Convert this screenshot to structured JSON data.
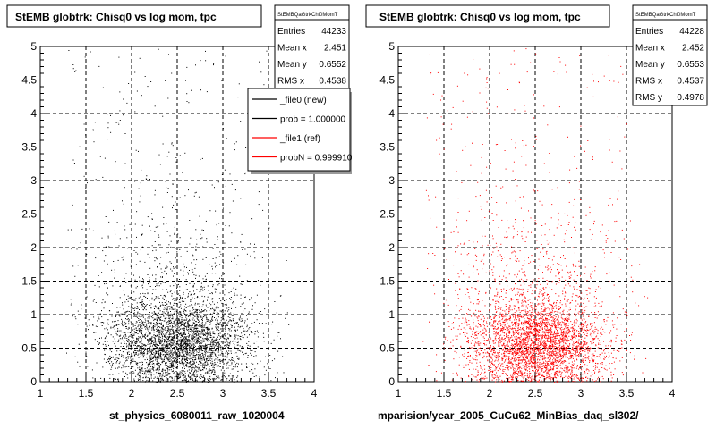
{
  "chart_data": [
    {
      "type": "scatter",
      "title": "StEMB globtrk: Chisq0 vs log mom, tpc",
      "xlabel": "st_physics_6080011_raw_1020004",
      "ylabel": "",
      "xlim": [
        1,
        4
      ],
      "ylim": [
        0,
        5
      ],
      "xticks": [
        1,
        1.5,
        2,
        2.5,
        3,
        3.5,
        4
      ],
      "yticks": [
        0,
        0.5,
        1,
        1.5,
        2,
        2.5,
        3,
        3.5,
        4,
        4.5,
        5
      ],
      "grid": true,
      "point_color": "#000000",
      "points_density": "dense cluster around x 2.0-3.2, y 0-1.2; sparse scatter up to y 5",
      "stats": {
        "name": "StEMBQaGtrkChi0MomT",
        "rows": [
          {
            "label": "Entries",
            "value": "44233"
          },
          {
            "label": "Mean x",
            "value": "2.451"
          },
          {
            "label": "Mean y",
            "value": "0.6552"
          },
          {
            "label": "RMS x",
            "value": "0.4538"
          }
        ]
      },
      "legend": {
        "placement": "top-right",
        "entries": [
          {
            "label": "_file0 (new)",
            "color": "#000000"
          },
          {
            "label": "prob = 1.000000",
            "color": "#000000"
          },
          {
            "label": "_file1 (ref)",
            "color": "#ff0000"
          },
          {
            "label": "probN = 0.999910",
            "color": "#ff0000"
          }
        ]
      }
    },
    {
      "type": "scatter",
      "title": "StEMB globtrk: Chisq0 vs log mom, tpc",
      "xlabel": "mparision/year_2005_CuCu62_MinBias_daq_sl302/",
      "ylabel": "",
      "xlim": [
        1,
        4
      ],
      "ylim": [
        0,
        5
      ],
      "xticks": [
        1,
        1.5,
        2,
        2.5,
        3,
        3.5,
        4
      ],
      "yticks": [
        0,
        0.5,
        1,
        1.5,
        2,
        2.5,
        3,
        3.5,
        4,
        4.5,
        5
      ],
      "grid": true,
      "point_color": "#ff0000",
      "points_density": "dense cluster around x 2.0-3.2, y 0-1.2; sparse scatter up to y 5",
      "stats": {
        "name": "StEMBQaGtrkChi0MomT",
        "rows": [
          {
            "label": "Entries",
            "value": "44228"
          },
          {
            "label": "Mean x",
            "value": "2.452"
          },
          {
            "label": "Mean y",
            "value": "0.6553"
          },
          {
            "label": "RMS x",
            "value": "0.4537"
          },
          {
            "label": "RMS y",
            "value": "0.4978"
          }
        ]
      }
    }
  ]
}
